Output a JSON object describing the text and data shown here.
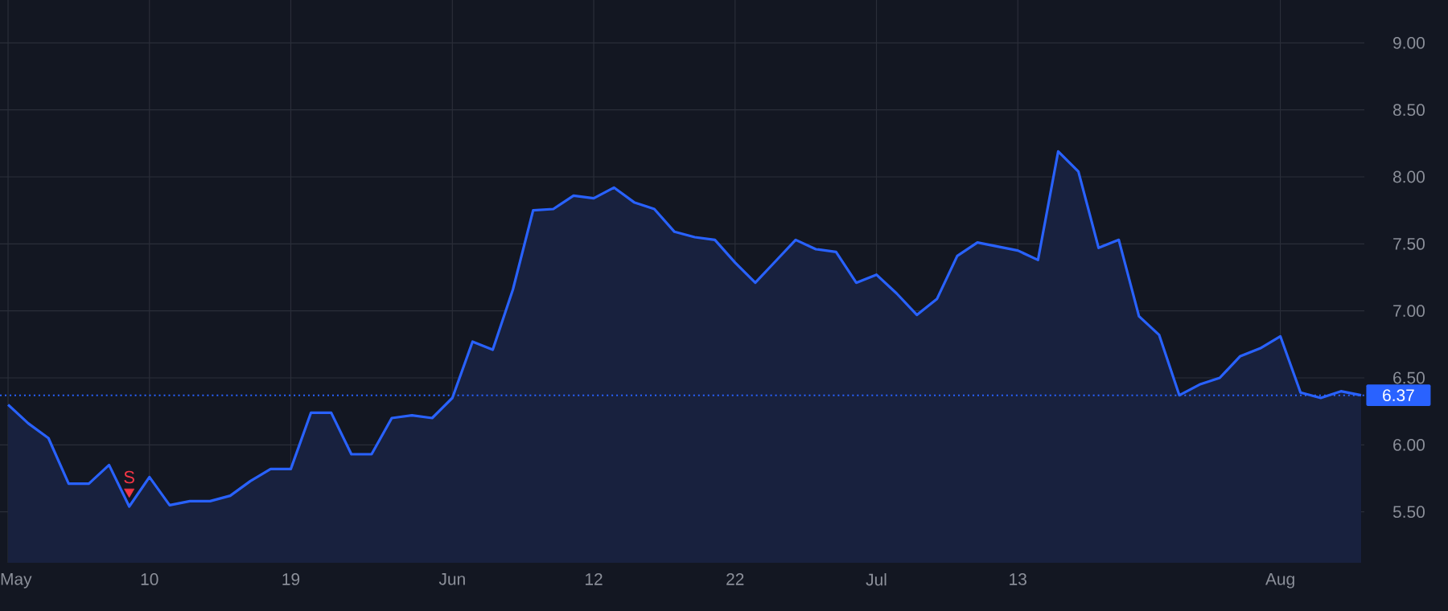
{
  "chart_data": {
    "type": "area",
    "categories": [
      "May",
      null,
      null,
      null,
      null,
      null,
      null,
      "10",
      null,
      null,
      null,
      null,
      null,
      null,
      "19",
      null,
      null,
      null,
      null,
      null,
      null,
      null,
      "Jun",
      null,
      null,
      null,
      null,
      null,
      null,
      "12",
      null,
      null,
      null,
      null,
      null,
      null,
      "22",
      null,
      null,
      null,
      null,
      null,
      null,
      "Jul",
      null,
      null,
      null,
      null,
      null,
      null,
      "13",
      null,
      null,
      null,
      null,
      null,
      null,
      null,
      null,
      null,
      null,
      null,
      null,
      "Aug",
      null,
      null,
      null,
      null
    ],
    "series": [
      {
        "color": "#2962ff",
        "values": [
          6.3,
          6.16,
          6.05,
          5.71,
          5.71,
          5.85,
          5.54,
          5.76,
          5.55,
          5.58,
          5.58,
          5.62,
          5.73,
          5.82,
          5.82,
          6.24,
          6.24,
          5.93,
          5.93,
          6.2,
          6.22,
          6.2,
          6.35,
          6.77,
          6.71,
          7.16,
          7.75,
          7.76,
          7.86,
          7.84,
          7.92,
          7.81,
          7.76,
          7.59,
          7.55,
          7.53,
          7.36,
          7.21,
          7.37,
          7.53,
          7.46,
          7.44,
          7.21,
          7.27,
          7.13,
          6.97,
          7.09,
          7.41,
          7.51,
          7.48,
          7.45,
          7.38,
          8.19,
          8.04,
          7.47,
          7.53,
          6.96,
          6.82,
          6.37,
          6.45,
          6.5,
          6.66,
          6.72,
          6.81,
          6.39,
          6.35,
          6.4,
          6.37
        ]
      },
      {
        "type": "scatter",
        "name": "S",
        "color": "#f23645",
        "marker": "triangle",
        "values": [
          null,
          null,
          null,
          null,
          null,
          null,
          5.65,
          null,
          null,
          null,
          null,
          null,
          null,
          null,
          null,
          null,
          null,
          null,
          null,
          null,
          null,
          null,
          null,
          null,
          null,
          null,
          null,
          null,
          null,
          null,
          null,
          null,
          null,
          null,
          null,
          null,
          null,
          null,
          null,
          null,
          null,
          null,
          null,
          null,
          null,
          null,
          null,
          null,
          null,
          null,
          null,
          null,
          null,
          null,
          null,
          null,
          null,
          null,
          null,
          null,
          null,
          null,
          null,
          null,
          null,
          null,
          null,
          null
        ]
      }
    ],
    "ylim": [
      5.12,
      9.32
    ],
    "yticks": [
      {
        "value": 5.5,
        "label": "5.50"
      },
      {
        "value": 6.0,
        "label": "6.00"
      },
      {
        "value": 6.5,
        "label": "6.50"
      },
      {
        "value": 7.0,
        "label": "7.00"
      },
      {
        "value": 7.5,
        "label": "7.50"
      },
      {
        "value": 8.0,
        "label": "8.00"
      },
      {
        "value": 8.5,
        "label": "8.50"
      },
      {
        "value": 9.0,
        "label": "9.00"
      }
    ],
    "grid": true,
    "ref_lines": [
      {
        "axis": "y",
        "value": 6.37,
        "label": "6.37",
        "color": "#2962ff",
        "line_style": "dotted"
      }
    ]
  }
}
